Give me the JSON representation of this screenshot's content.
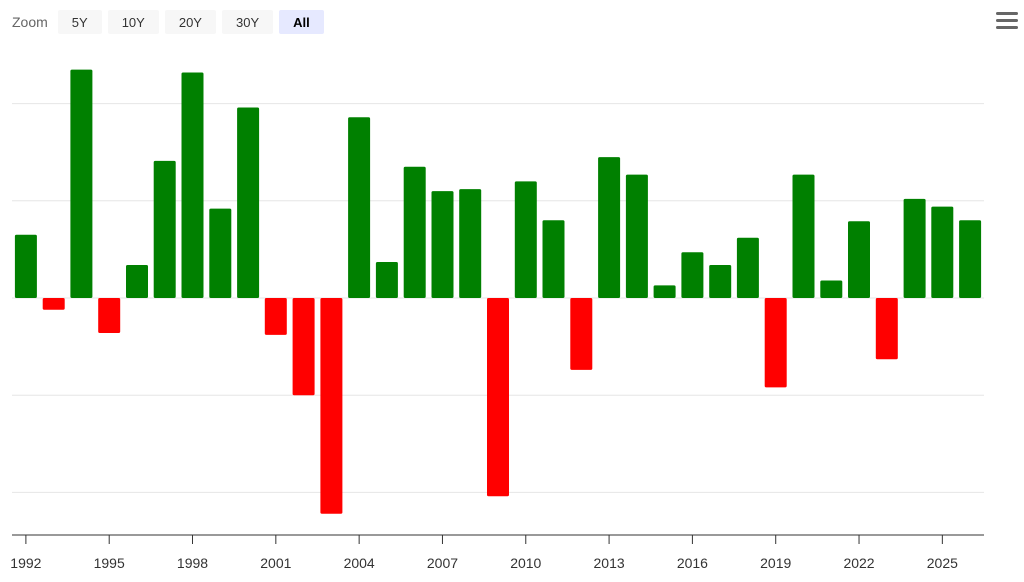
{
  "zoom": {
    "label": "Zoom",
    "buttons": [
      "5Y",
      "10Y",
      "20Y",
      "30Y",
      "All"
    ],
    "active": "All"
  },
  "menu": {
    "icon": "hamburger-menu-icon"
  },
  "colors": {
    "positive": "#008000",
    "negative": "#ff0000",
    "grid": "#e6e6e6",
    "axis": "#333333"
  },
  "chart_data": {
    "type": "bar",
    "title": "",
    "xlabel": "",
    "ylabel": "",
    "grid": true,
    "legend": "none",
    "ylim": [
      -24,
      26
    ],
    "categories": [
      "1992",
      "1993",
      "1994",
      "1995",
      "1996",
      "1997",
      "1998",
      "1999",
      "2000",
      "2001",
      "2002",
      "2003",
      "2004",
      "2005",
      "2006",
      "2007",
      "2008",
      "2009",
      "2010",
      "2011",
      "2012",
      "2013",
      "2014",
      "2015",
      "2016",
      "2017",
      "2018",
      "2019",
      "2020",
      "2021",
      "2022",
      "2023",
      "2024",
      "2025",
      "2026"
    ],
    "values": [
      6.5,
      -1.2,
      23.5,
      -3.6,
      3.4,
      14.1,
      23.2,
      9.2,
      19.6,
      -3.8,
      -10.0,
      -22.2,
      18.6,
      3.7,
      13.5,
      11.0,
      11.2,
      -20.4,
      12.0,
      8.0,
      -7.4,
      14.5,
      12.7,
      1.3,
      4.7,
      3.4,
      6.2,
      -9.2,
      12.7,
      1.8,
      7.9,
      -6.3,
      10.2,
      9.4,
      8.0
    ],
    "xticks": [
      "1992",
      "1995",
      "1998",
      "2001",
      "2004",
      "2007",
      "2010",
      "2013",
      "2016",
      "2019",
      "2022",
      "2025"
    ]
  }
}
